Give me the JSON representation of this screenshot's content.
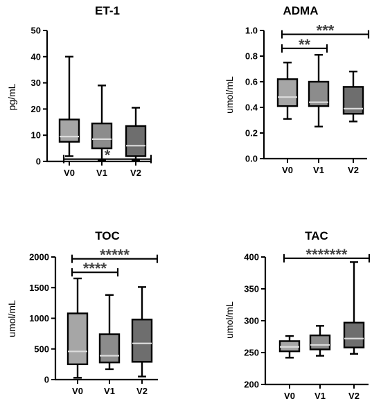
{
  "chart_data": [
    {
      "type": "box",
      "title": "ET-1",
      "ylabel": "pg/mL",
      "ylim": [
        0,
        50
      ],
      "yticks": [
        0,
        10,
        20,
        30,
        40,
        50
      ],
      "categories": [
        "V0",
        "V1",
        "V2"
      ],
      "boxes": [
        {
          "min": 2,
          "q1": 7.5,
          "median": 9.5,
          "q3": 16,
          "max": 40
        },
        {
          "min": 0.5,
          "q1": 5,
          "median": 8.5,
          "q3": 14.5,
          "max": 29
        },
        {
          "min": 0.5,
          "q1": 2,
          "median": 6,
          "q3": 13.5,
          "max": 20.5
        }
      ],
      "box_colors": [
        "#a6a6a6",
        "#8c8c8c",
        "#6e6e6e"
      ],
      "significance": [
        {
          "from": 0,
          "to": 2,
          "level": 0.88,
          "label": "*"
        }
      ]
    },
    {
      "type": "box",
      "title": "ADMA",
      "ylabel": "umol/mL",
      "ylim": [
        0,
        1
      ],
      "yticks": [
        "0.0",
        "0.2",
        "0.4",
        "0.6",
        "0.8",
        "1.0"
      ],
      "categories": [
        "V0",
        "V1",
        "V2"
      ],
      "boxes": [
        {
          "min": 0.31,
          "q1": 0.41,
          "median": 0.48,
          "q3": 0.62,
          "max": 0.75
        },
        {
          "min": 0.25,
          "q1": 0.41,
          "median": 0.44,
          "q3": 0.6,
          "max": 0.81
        },
        {
          "min": 0.29,
          "q1": 0.35,
          "median": 0.39,
          "q3": 0.56,
          "max": 0.68
        }
      ],
      "box_colors": [
        "#a6a6a6",
        "#8c8c8c",
        "#6e6e6e"
      ],
      "significance": [
        {
          "from": 0,
          "to": 2,
          "level": 0.97,
          "label": "***"
        },
        {
          "from": 0,
          "to": 1,
          "level": 0.86,
          "label": "**"
        }
      ]
    },
    {
      "type": "box",
      "title": "TOC",
      "ylabel": "umol/mL",
      "ylim": [
        0,
        2000
      ],
      "yticks": [
        0,
        500,
        1000,
        1500,
        2000
      ],
      "categories": [
        "V0",
        "V1",
        "V2"
      ],
      "boxes": [
        {
          "min": 30,
          "q1": 250,
          "median": 460,
          "q3": 1080,
          "max": 1650
        },
        {
          "min": 170,
          "q1": 280,
          "median": 390,
          "q3": 740,
          "max": 1380
        },
        {
          "min": 50,
          "q1": 290,
          "median": 590,
          "q3": 980,
          "max": 1510
        }
      ],
      "box_colors": [
        "#a6a6a6",
        "#8c8c8c",
        "#6e6e6e"
      ],
      "significance": [
        {
          "from": 0,
          "to": 2,
          "level": 1970,
          "label": "*****"
        },
        {
          "from": 0,
          "to": 1,
          "level": 1750,
          "label": "****"
        }
      ]
    },
    {
      "type": "box",
      "title": "TAC",
      "ylabel": "umol/mL",
      "ylim": [
        200,
        400
      ],
      "yticks": [
        200,
        250,
        300,
        350,
        400
      ],
      "categories": [
        "V0",
        "V1",
        "V2"
      ],
      "boxes": [
        {
          "min": 242,
          "q1": 252,
          "median": 259,
          "q3": 268,
          "max": 276
        },
        {
          "min": 245,
          "q1": 255,
          "median": 262,
          "q3": 277,
          "max": 292
        },
        {
          "min": 248,
          "q1": 258,
          "median": 272,
          "q3": 297,
          "max": 392
        }
      ],
      "box_colors": [
        "#a6a6a6",
        "#8c8c8c",
        "#6e6e6e"
      ],
      "significance": [
        {
          "from": 0,
          "to": 2,
          "level": 398,
          "label": "*******"
        }
      ]
    }
  ]
}
